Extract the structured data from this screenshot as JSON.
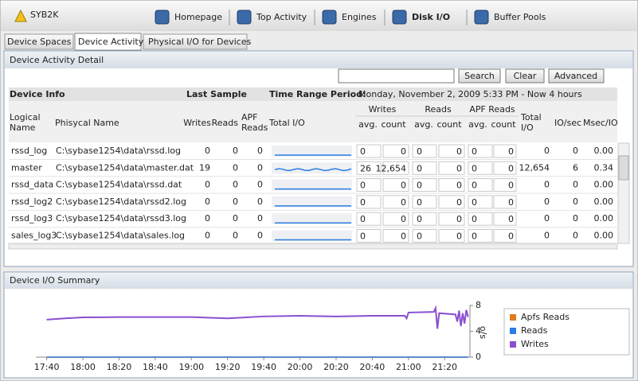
{
  "app": {
    "title": "SYB2K"
  },
  "nav": [
    "Homepage",
    "Top Activity",
    "Engines",
    "Disk I/O",
    "Buffer Pools"
  ],
  "tabs": [
    "Device Spaces",
    "Device Activity",
    "Physical I/O for Devices"
  ],
  "detail": {
    "title": "Device Activity Detail",
    "buttons": [
      "Search",
      "Clear",
      "Advanced"
    ],
    "groups": [
      "Device Info",
      "Last Sample",
      "Time Range Period:"
    ],
    "time_range": "Monday, November 2, 2009  5:33 PM - Now  4 hours",
    "columns": [
      "Logical Name",
      "Phisycal Name",
      "Writes",
      "Reads",
      "APF Reads",
      "Total I/O",
      "Total I/O",
      "IO/sec",
      "Msec/IO"
    ],
    "subgroups": [
      "Writes",
      "Reads",
      "APF Reads"
    ],
    "subcolumns": [
      "avg.",
      "count"
    ],
    "rows": [
      [
        "rssd_log",
        "C:\\sybase1254\\data\\rssd.log",
        "0",
        "0",
        "0",
        "0",
        "0",
        "0",
        "0",
        "0",
        "0",
        "0",
        "0",
        "0.00"
      ],
      [
        "master",
        "C:\\sybase1254\\data\\master.dat",
        "19",
        "0",
        "0",
        "26",
        "12,654",
        "0",
        "0",
        "0",
        "0",
        "12,654",
        "6",
        "0.34"
      ],
      [
        "rssd_data",
        "C:\\sybase1254\\data\\rssd.dat",
        "0",
        "0",
        "0",
        "0",
        "0",
        "0",
        "0",
        "0",
        "0",
        "0",
        "0",
        "0.00"
      ],
      [
        "rssd_log2",
        "C:\\sybase1254\\data\\rssd2.log",
        "0",
        "0",
        "0",
        "0",
        "0",
        "0",
        "0",
        "0",
        "0",
        "0",
        "0",
        "0.00"
      ],
      [
        "rssd_log3",
        "C:\\sybase1254\\data\\rssd3.log",
        "0",
        "0",
        "0",
        "0",
        "0",
        "0",
        "0",
        "0",
        "0",
        "0",
        "0",
        "0.00"
      ],
      [
        "sales_log3",
        "C:\\sybase1254\\data\\sales.log",
        "0",
        "0",
        "0",
        "0",
        "0",
        "0",
        "0",
        "0",
        "0",
        "0",
        "0",
        "0.00"
      ]
    ]
  },
  "chart_data": {
    "type": "line",
    "title": "Device I/O Summary",
    "y_label": "o/s",
    "x": [
      "17:40",
      "17:50",
      "18:00",
      "18:20",
      "18:40",
      "19:00",
      "19:20",
      "19:40",
      "20:00",
      "20:20",
      "20:40",
      "20:58",
      "20:59",
      "21:00",
      "21:14",
      "21:15",
      "21:16",
      "21:17",
      "21:26",
      "21:27",
      "21:28",
      "21:29",
      "21:30",
      "21:31",
      "21:32",
      "21:33"
    ],
    "xlim": [
      "17:34",
      "21:34"
    ],
    "xticks": [
      "17:40",
      "18:00",
      "18:20",
      "18:40",
      "19:00",
      "19:20",
      "19:40",
      "20:00",
      "20:20",
      "20:40",
      "21:00",
      "21:20"
    ],
    "ylim": [
      0,
      8
    ],
    "yticks": [
      0,
      4,
      8
    ],
    "series": [
      {
        "name": "Apfs Reads",
        "color": "#e07b1f",
        "values": [
          0,
          0,
          0,
          0,
          0,
          0,
          0,
          0,
          0,
          0,
          0,
          0,
          0,
          0,
          0,
          0,
          0,
          0,
          0,
          0,
          0,
          0,
          0,
          0,
          0,
          0
        ]
      },
      {
        "name": "Reads",
        "color": "#2a7de1",
        "values": [
          0,
          0,
          0,
          0,
          0,
          0,
          0,
          0,
          0,
          0,
          0,
          0,
          0,
          0,
          0,
          0,
          0,
          0,
          0,
          0,
          0,
          0,
          0,
          0,
          0,
          0
        ]
      },
      {
        "name": "Writes",
        "color": "#8a4fcf",
        "values": [
          5.8,
          6.0,
          6.15,
          6.2,
          6.2,
          6.2,
          6.0,
          6.3,
          6.4,
          6.3,
          6.4,
          6.4,
          6.0,
          6.9,
          7.0,
          7.6,
          4.4,
          6.8,
          6.6,
          5.5,
          7.2,
          4.8,
          6.8,
          5.2,
          7.3,
          6.2
        ]
      }
    ]
  }
}
